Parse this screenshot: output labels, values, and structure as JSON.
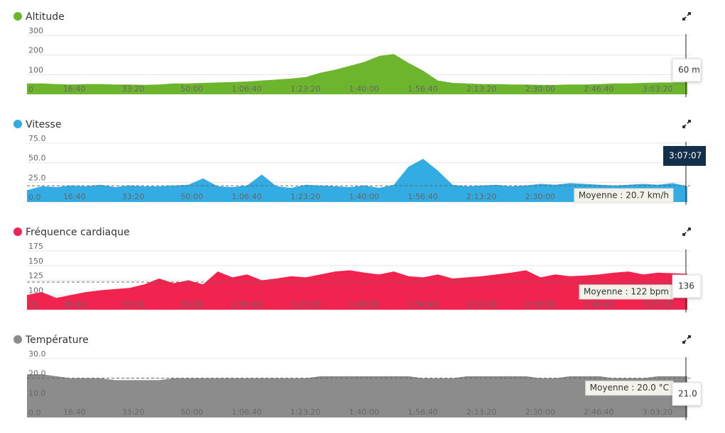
{
  "chart_data": [
    {
      "type": "area",
      "title": "Altitude",
      "color": "#6cb52d",
      "x": [
        0,
        250,
        500,
        750,
        1000,
        1250,
        1500,
        1750,
        2000,
        2250,
        2500,
        2750,
        3000,
        3250,
        3500,
        3750,
        4000,
        4250,
        4500,
        4750,
        5000,
        5250,
        5500,
        5750,
        6000,
        6250,
        6500,
        6750,
        7000,
        7250,
        7500,
        7750,
        8000,
        8250,
        8500,
        8750,
        9000,
        9250,
        9500,
        9750,
        10000,
        10250,
        10500,
        10750,
        11000,
        11250
      ],
      "values": [
        55,
        55,
        52,
        50,
        52,
        52,
        50,
        50,
        48,
        50,
        55,
        55,
        58,
        60,
        62,
        65,
        70,
        75,
        80,
        88,
        110,
        125,
        145,
        165,
        195,
        205,
        160,
        120,
        70,
        58,
        55,
        52,
        52,
        50,
        50,
        48,
        48,
        50,
        50,
        52,
        55,
        55,
        58,
        60,
        60,
        60
      ],
      "xlim": [
        0,
        11300
      ],
      "ylim": [
        0,
        300
      ],
      "yticks": [
        0,
        100,
        200,
        300
      ],
      "xticks": [
        {
          "value": 1000,
          "label": "16:40"
        },
        {
          "value": 2000,
          "label": "33:20"
        },
        {
          "value": 3000,
          "label": "50:00"
        },
        {
          "value": 4000,
          "label": "1:06:40"
        },
        {
          "value": 5000,
          "label": "1:23:20"
        },
        {
          "value": 6000,
          "label": "1:40:00"
        },
        {
          "value": 7000,
          "label": "1:56:40"
        },
        {
          "value": 8000,
          "label": "2:13:20"
        },
        {
          "value": 9000,
          "label": "2:30:00"
        },
        {
          "value": 10000,
          "label": "2:46:40"
        },
        {
          "value": 11000,
          "label": "3:03:20"
        }
      ],
      "tooltip": "60 m"
    },
    {
      "type": "area",
      "title": "Vitesse",
      "color": "#33abe3",
      "x": [
        0,
        250,
        500,
        750,
        1000,
        1250,
        1500,
        1750,
        2000,
        2250,
        2500,
        2750,
        3000,
        3250,
        3500,
        3750,
        4000,
        4250,
        4500,
        4750,
        5000,
        5250,
        5500,
        5750,
        6000,
        6250,
        6500,
        6750,
        7000,
        7250,
        7500,
        7750,
        8000,
        8250,
        8500,
        8750,
        9000,
        9250,
        9500,
        9750,
        10000,
        10250,
        10500,
        10750,
        11000,
        11250
      ],
      "values": [
        15,
        20,
        19,
        21,
        20,
        22,
        19,
        21,
        20,
        20,
        21,
        22,
        30,
        20,
        19,
        21,
        35,
        20,
        18,
        22,
        21,
        20,
        19,
        21,
        18,
        22,
        45,
        55,
        40,
        22,
        20,
        21,
        22,
        20,
        21,
        23,
        22,
        24,
        23,
        22,
        21,
        22,
        23,
        22,
        24,
        20
      ],
      "xlim": [
        0,
        11300
      ],
      "ylim": [
        0,
        75
      ],
      "yticks": [
        {
          "value": 0,
          "label": "0.0"
        },
        {
          "value": 25,
          "label": "25.0"
        },
        {
          "value": 50,
          "label": "50.0"
        },
        {
          "value": 75,
          "label": "75.0"
        }
      ],
      "xticks": [
        {
          "value": 1000,
          "label": "16:40"
        },
        {
          "value": 2000,
          "label": "33:20"
        },
        {
          "value": 3000,
          "label": "50:00"
        },
        {
          "value": 4000,
          "label": "1:06:40"
        },
        {
          "value": 5000,
          "label": "1:23:20"
        },
        {
          "value": 6000,
          "label": "1:40:00"
        },
        {
          "value": 7000,
          "label": "1:56:40"
        },
        {
          "value": 8000,
          "label": "2:13:20"
        },
        {
          "value": 9000,
          "label": "2:30:00"
        },
        {
          "value": 10000,
          "label": "2:46:40"
        },
        {
          "value": 11000,
          "label": "3:03:20"
        }
      ],
      "mean": 20.7,
      "mean_label": "Moyenne : 20.7 km/h",
      "cursor": {
        "value": 11227,
        "label": "3:07:07"
      }
    },
    {
      "type": "area",
      "title": "Fréquence cardiaque",
      "color": "#f0244f",
      "x": [
        0,
        250,
        500,
        750,
        1000,
        1250,
        1500,
        1750,
        2000,
        2250,
        2500,
        2750,
        3000,
        3250,
        3500,
        3750,
        4000,
        4250,
        4500,
        4750,
        5000,
        5250,
        5500,
        5750,
        6000,
        6250,
        6500,
        6750,
        7000,
        7250,
        7500,
        7750,
        8000,
        8250,
        8500,
        8750,
        9000,
        9250,
        9500,
        9750,
        10000,
        10250,
        10500,
        10750,
        11000,
        11250
      ],
      "values": [
        100,
        105,
        95,
        100,
        105,
        108,
        110,
        112,
        118,
        128,
        120,
        125,
        118,
        140,
        130,
        135,
        125,
        128,
        132,
        130,
        135,
        140,
        142,
        138,
        135,
        140,
        132,
        130,
        135,
        128,
        130,
        132,
        135,
        138,
        142,
        130,
        135,
        132,
        133,
        135,
        138,
        140,
        135,
        138,
        137,
        136
      ],
      "xlim": [
        0,
        11300
      ],
      "ylim": [
        75,
        175
      ],
      "yticks": [
        75,
        100,
        125,
        150,
        175
      ],
      "xticks": [
        {
          "value": 1000,
          "label": "16:40"
        },
        {
          "value": 2000,
          "label": "33:20"
        },
        {
          "value": 3000,
          "label": "50:00"
        },
        {
          "value": 4000,
          "label": "1:06:40"
        },
        {
          "value": 5000,
          "label": "1:23:20"
        },
        {
          "value": 6000,
          "label": "1:40:00"
        },
        {
          "value": 7000,
          "label": "1:56:40"
        },
        {
          "value": 8000,
          "label": "2:13:20"
        },
        {
          "value": 9000,
          "label": "2:30:00"
        },
        {
          "value": 10000,
          "label": "2:46:40"
        },
        {
          "value": 11000,
          "label": "3:03:20"
        }
      ],
      "mean": 122,
      "mean_label": "Moyenne : 122 bpm",
      "tooltip": "136"
    },
    {
      "type": "area",
      "title": "Température",
      "color": "#8c8c8c",
      "x": [
        0,
        250,
        500,
        750,
        1000,
        1250,
        1500,
        1750,
        2000,
        2250,
        2500,
        2750,
        3000,
        3250,
        3500,
        3750,
        4000,
        4250,
        4500,
        4750,
        5000,
        5250,
        5500,
        5750,
        6000,
        6250,
        6500,
        6750,
        7000,
        7250,
        7500,
        7750,
        8000,
        8250,
        8500,
        8750,
        9000,
        9250,
        9500,
        9750,
        10000,
        10250,
        10500,
        10750,
        11000,
        11250
      ],
      "values": [
        22,
        22,
        21,
        20,
        20,
        20,
        19,
        19,
        19,
        19,
        20,
        20,
        20,
        20,
        20,
        20,
        20,
        20,
        20,
        20,
        21,
        21,
        21,
        21,
        21,
        21,
        21,
        20,
        20,
        20,
        21,
        21,
        21,
        21,
        21,
        20,
        20,
        21,
        21,
        21,
        20,
        20,
        20,
        21,
        21,
        21
      ],
      "xlim": [
        0,
        11300
      ],
      "ylim": [
        0,
        30
      ],
      "yticks": [
        {
          "value": 0,
          "label": "0.0"
        },
        {
          "value": 10,
          "label": "10.0"
        },
        {
          "value": 20,
          "label": "20.0"
        },
        {
          "value": 30,
          "label": "30.0"
        }
      ],
      "xticks": [
        {
          "value": 1000,
          "label": "16:40"
        },
        {
          "value": 2000,
          "label": "33:20"
        },
        {
          "value": 3000,
          "label": "50:00"
        },
        {
          "value": 4000,
          "label": "1:06:40"
        },
        {
          "value": 5000,
          "label": "1:23:20"
        },
        {
          "value": 6000,
          "label": "1:40:00"
        },
        {
          "value": 7000,
          "label": "1:56:40"
        },
        {
          "value": 8000,
          "label": "2:13:20"
        },
        {
          "value": 9000,
          "label": "2:30:00"
        },
        {
          "value": 10000,
          "label": "2:46:40"
        },
        {
          "value": 11000,
          "label": "3:03:20"
        }
      ],
      "mean": 20.0,
      "mean_label": "Moyenne : 20.0 °C",
      "tooltip": "21.0"
    }
  ]
}
